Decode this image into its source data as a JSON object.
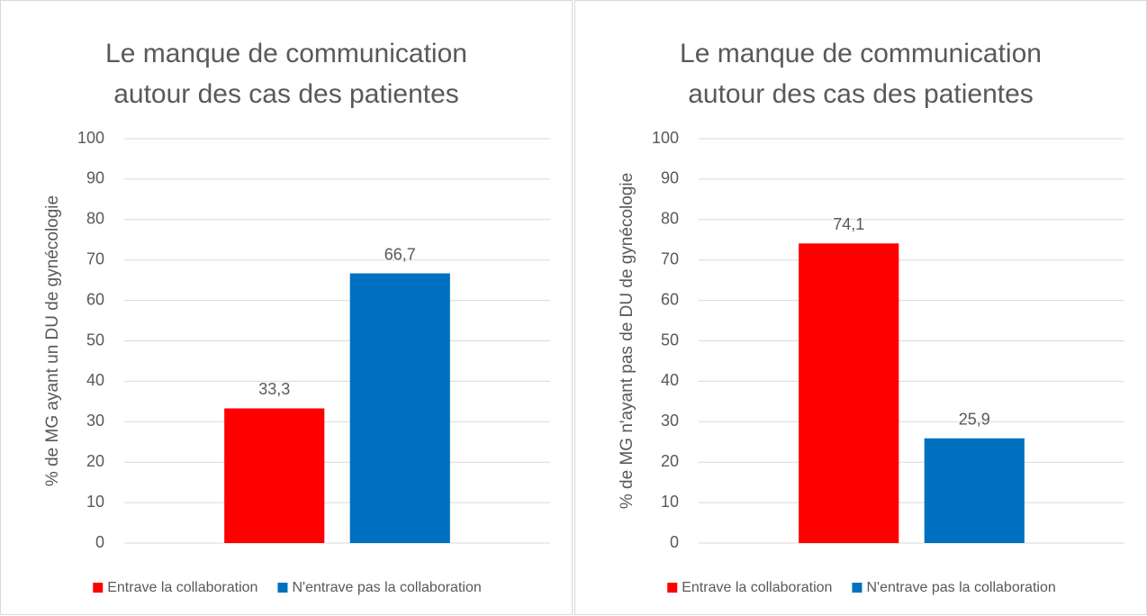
{
  "chart_data": [
    {
      "type": "bar",
      "title": "Le manque de communication autour des cas des patientes",
      "ylabel": "% de MG ayant un DU de gynécologie",
      "categories": [
        null
      ],
      "series": [
        {
          "name": "Entrave la collaboration",
          "color": "#ff0000",
          "values": [
            33.3
          ],
          "value_labels": [
            "33,3"
          ]
        },
        {
          "name": "N'entrave pas la collaboration",
          "color": "#0070c0",
          "values": [
            66.7
          ],
          "value_labels": [
            "66,7"
          ]
        }
      ],
      "ylim": [
        0,
        100
      ],
      "yticks": [
        0,
        10,
        20,
        30,
        40,
        50,
        60,
        70,
        80,
        90,
        100
      ],
      "grid": true,
      "legend": "bottom"
    },
    {
      "type": "bar",
      "title": "Le manque de communication autour des cas des patientes",
      "ylabel": "% de MG n'ayant pas de DU de gynécologie",
      "categories": [
        null
      ],
      "series": [
        {
          "name": "Entrave la collaboration",
          "color": "#ff0000",
          "values": [
            74.1
          ],
          "value_labels": [
            "74,1"
          ]
        },
        {
          "name": "N'entrave pas la collaboration",
          "color": "#0070c0",
          "values": [
            25.9
          ],
          "value_labels": [
            "25,9"
          ]
        }
      ],
      "ylim": [
        0,
        100
      ],
      "yticks": [
        0,
        10,
        20,
        30,
        40,
        50,
        60,
        70,
        80,
        90,
        100
      ],
      "grid": true,
      "legend": "bottom"
    }
  ]
}
